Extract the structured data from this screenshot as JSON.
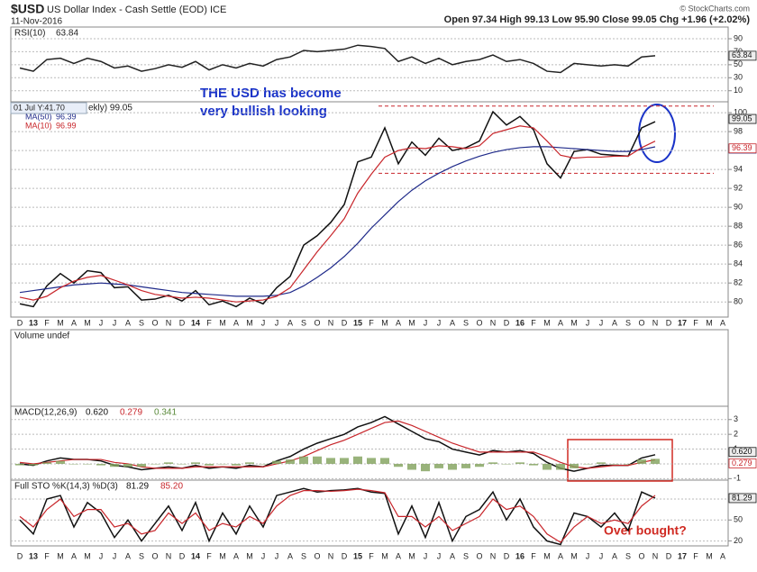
{
  "header": {
    "symbol": "$USD",
    "name": "US Dollar Index - Cash Settle (EOD) ICE",
    "date": "11-Nov-2016",
    "quote": "Open 97.34  High 99.13  Low 95.90  Close 99.05  Chg +1.96 (+2.02%)",
    "copyright": "© StockCharts.com"
  },
  "annotations": {
    "bullish": [
      "THE USD has become",
      "very bullish looking"
    ],
    "overbought": "Over bought?",
    "tooltip": "01 Jul Y:41.70"
  },
  "chart_data": [
    {
      "type": "line",
      "title": "RSI(10)",
      "readout": [
        "63.84"
      ],
      "ylim": [
        -7,
        108
      ],
      "yticks": [
        10,
        30,
        50,
        70,
        90
      ],
      "grid": true,
      "series": [
        {
          "name": "RSI(10)",
          "color": "#222222",
          "values": [
            45,
            40,
            58,
            60,
            52,
            60,
            55,
            45,
            48,
            40,
            44,
            50,
            46,
            55,
            42,
            50,
            45,
            52,
            48,
            58,
            62,
            72,
            70,
            72,
            74,
            80,
            78,
            75,
            55,
            62,
            52,
            60,
            50,
            55,
            58,
            65,
            55,
            58,
            52,
            40,
            38,
            52,
            50,
            48,
            50,
            48,
            62,
            63.84,
            null,
            null,
            null,
            null,
            null
          ]
        }
      ]
    },
    {
      "type": "line",
      "title": "ekly) 99.05",
      "readout": [
        "99.05",
        "96.99",
        "96.39"
      ],
      "categories": [
        "D",
        "13",
        "F",
        "M",
        "A",
        "M",
        "J",
        "J",
        "A",
        "S",
        "O",
        "N",
        "D",
        "14",
        "F",
        "M",
        "A",
        "M",
        "J",
        "J",
        "A",
        "S",
        "O",
        "N",
        "D",
        "15",
        "F",
        "M",
        "A",
        "M",
        "J",
        "J",
        "A",
        "S",
        "O",
        "N",
        "D",
        "16",
        "F",
        "M",
        "A",
        "M",
        "J",
        "J",
        "A",
        "S",
        "O",
        "N",
        "D",
        "17",
        "F",
        "M",
        "A"
      ],
      "ylim": [
        78.4,
        101.15
      ],
      "yticks": [
        80,
        82,
        84,
        86,
        88,
        90,
        92,
        94,
        96,
        98,
        100
      ],
      "grid": true,
      "levels": [
        100.7,
        93.6
      ],
      "series": [
        {
          "name": "$USD",
          "color": "#111111",
          "values": [
            79.8,
            79.5,
            81.7,
            83.0,
            82.0,
            83.3,
            83.1,
            81.5,
            81.6,
            80.2,
            80.3,
            80.7,
            80.1,
            81.2,
            79.7,
            80.1,
            79.5,
            80.4,
            79.8,
            81.5,
            82.7,
            86.0,
            87.0,
            88.4,
            90.3,
            94.8,
            95.3,
            98.4,
            94.6,
            96.9,
            95.5,
            97.3,
            96.0,
            96.3,
            97.0,
            100.1,
            98.7,
            99.6,
            98.2,
            94.6,
            93.1,
            95.9,
            96.1,
            95.6,
            95.5,
            95.4,
            98.4,
            99.05,
            null,
            null,
            null,
            null,
            null
          ]
        },
        {
          "name": "MA(50)",
          "color": "#1f2a8a",
          "values": [
            81.0,
            81.2,
            81.4,
            81.6,
            81.8,
            81.9,
            82.0,
            81.9,
            81.8,
            81.6,
            81.4,
            81.2,
            81.0,
            80.9,
            80.8,
            80.7,
            80.6,
            80.6,
            80.6,
            80.7,
            81.0,
            81.7,
            82.6,
            83.6,
            84.8,
            86.2,
            87.8,
            89.2,
            90.6,
            91.8,
            92.8,
            93.6,
            94.3,
            94.9,
            95.4,
            95.8,
            96.1,
            96.3,
            96.4,
            96.4,
            96.3,
            96.2,
            96.1,
            96.0,
            95.9,
            95.9,
            96.1,
            96.39,
            null,
            null,
            null,
            null,
            null
          ]
        },
        {
          "name": "MA(10)",
          "color": "#c8262b",
          "values": [
            80.5,
            80.2,
            80.6,
            81.5,
            82.2,
            82.6,
            82.8,
            82.3,
            81.8,
            81.2,
            80.8,
            80.6,
            80.4,
            80.5,
            80.4,
            80.2,
            80.0,
            80.1,
            80.2,
            80.6,
            81.5,
            83.4,
            85.3,
            87.0,
            88.8,
            91.5,
            93.5,
            95.3,
            96.0,
            96.3,
            96.2,
            96.5,
            96.4,
            96.2,
            96.5,
            97.8,
            98.2,
            98.6,
            98.4,
            97.0,
            95.5,
            95.2,
            95.3,
            95.3,
            95.4,
            95.4,
            96.3,
            96.99,
            null,
            null,
            null,
            null,
            null
          ]
        }
      ]
    },
    {
      "type": "bar",
      "title": "Volume undef"
    },
    {
      "type": "line",
      "title": "MACD(12,26,9)",
      "readout": [
        "0.620",
        "0.279",
        "0.341"
      ],
      "ylim": [
        -1.1,
        3.9
      ],
      "yticks": [
        -1,
        0,
        1,
        2,
        3
      ],
      "grid": true,
      "series": [
        {
          "name": "MACD",
          "color": "#111111",
          "values": [
            0,
            -0.1,
            0.2,
            0.4,
            0.3,
            0.3,
            0.2,
            -0.1,
            -0.2,
            -0.4,
            -0.3,
            -0.2,
            -0.3,
            -0.1,
            -0.3,
            -0.2,
            -0.3,
            -0.1,
            -0.2,
            0.2,
            0.5,
            1.0,
            1.4,
            1.7,
            2.0,
            2.5,
            2.8,
            3.2,
            2.7,
            2.2,
            1.7,
            1.5,
            1.0,
            0.8,
            0.6,
            0.9,
            0.8,
            0.9,
            0.7,
            0.1,
            -0.3,
            -0.5,
            -0.3,
            -0.1,
            -0.1,
            -0.1,
            0.4,
            0.62,
            null,
            null,
            null,
            null,
            null
          ]
        },
        {
          "name": "Signal",
          "color": "#c8262b",
          "values": [
            0.1,
            0,
            0.1,
            0.2,
            0.3,
            0.3,
            0.3,
            0.1,
            0,
            -0.2,
            -0.3,
            -0.3,
            -0.3,
            -0.2,
            -0.2,
            -0.2,
            -0.2,
            -0.2,
            -0.2,
            0,
            0.2,
            0.5,
            0.9,
            1.3,
            1.6,
            2.0,
            2.4,
            2.8,
            2.9,
            2.6,
            2.2,
            1.8,
            1.4,
            1.1,
            0.8,
            0.8,
            0.8,
            0.8,
            0.8,
            0.5,
            0.1,
            -0.2,
            -0.3,
            -0.2,
            -0.1,
            -0.1,
            0.1,
            0.279,
            null,
            null,
            null,
            null,
            null
          ]
        },
        {
          "name": "Histogram",
          "color": "#7fa05a",
          "style": "histogram",
          "values": [
            -0.1,
            -0.1,
            0.1,
            0.2,
            0,
            0,
            -0.1,
            -0.2,
            -0.2,
            -0.2,
            0,
            0.1,
            0,
            0.1,
            -0.1,
            0,
            -0.1,
            0.1,
            0,
            0.2,
            0.3,
            0.5,
            0.5,
            0.4,
            0.4,
            0.5,
            0.4,
            0.4,
            -0.2,
            -0.4,
            -0.5,
            -0.3,
            -0.4,
            -0.3,
            -0.2,
            0.1,
            0,
            0.1,
            -0.1,
            -0.4,
            -0.4,
            -0.3,
            0,
            0.1,
            0,
            0,
            0.3,
            0.341,
            null,
            null,
            null,
            null,
            null
          ]
        }
      ]
    },
    {
      "type": "line",
      "title": "Full STO %K(14,3) %D(3)",
      "readout": [
        "81.29",
        "85.20"
      ],
      "categories": [
        "D",
        "13",
        "F",
        "M",
        "A",
        "M",
        "J",
        "J",
        "A",
        "S",
        "O",
        "N",
        "D",
        "14",
        "F",
        "M",
        "A",
        "M",
        "J",
        "J",
        "A",
        "S",
        "O",
        "N",
        "D",
        "15",
        "F",
        "M",
        "A",
        "M",
        "J",
        "J",
        "A",
        "S",
        "O",
        "N",
        "D",
        "16",
        "F",
        "M",
        "A",
        "M",
        "J",
        "J",
        "A",
        "S",
        "O",
        "N",
        "D",
        "17",
        "F",
        "M",
        "A"
      ],
      "ylim": [
        13,
        107
      ],
      "yticks": [
        20,
        50,
        80
      ],
      "grid": true,
      "series": [
        {
          "name": "%K",
          "color": "#111111",
          "values": [
            50,
            30,
            80,
            85,
            40,
            75,
            60,
            25,
            50,
            20,
            45,
            70,
            35,
            75,
            20,
            60,
            30,
            70,
            40,
            85,
            90,
            95,
            90,
            92,
            93,
            95,
            90,
            88,
            30,
            70,
            25,
            75,
            20,
            55,
            65,
            90,
            50,
            80,
            40,
            20,
            15,
            60,
            55,
            40,
            60,
            35,
            90,
            81.29,
            null,
            null,
            null,
            null,
            null
          ]
        },
        {
          "name": "%D",
          "color": "#c8262b",
          "values": [
            55,
            40,
            65,
            80,
            55,
            65,
            65,
            40,
            45,
            30,
            35,
            60,
            45,
            60,
            35,
            45,
            40,
            55,
            45,
            70,
            85,
            92,
            92,
            91,
            92,
            94,
            92,
            89,
            55,
            55,
            40,
            55,
            35,
            45,
            55,
            80,
            65,
            70,
            55,
            30,
            18,
            40,
            55,
            45,
            50,
            45,
            70,
            85.2,
            null,
            null,
            null,
            null,
            null
          ]
        }
      ]
    }
  ]
}
